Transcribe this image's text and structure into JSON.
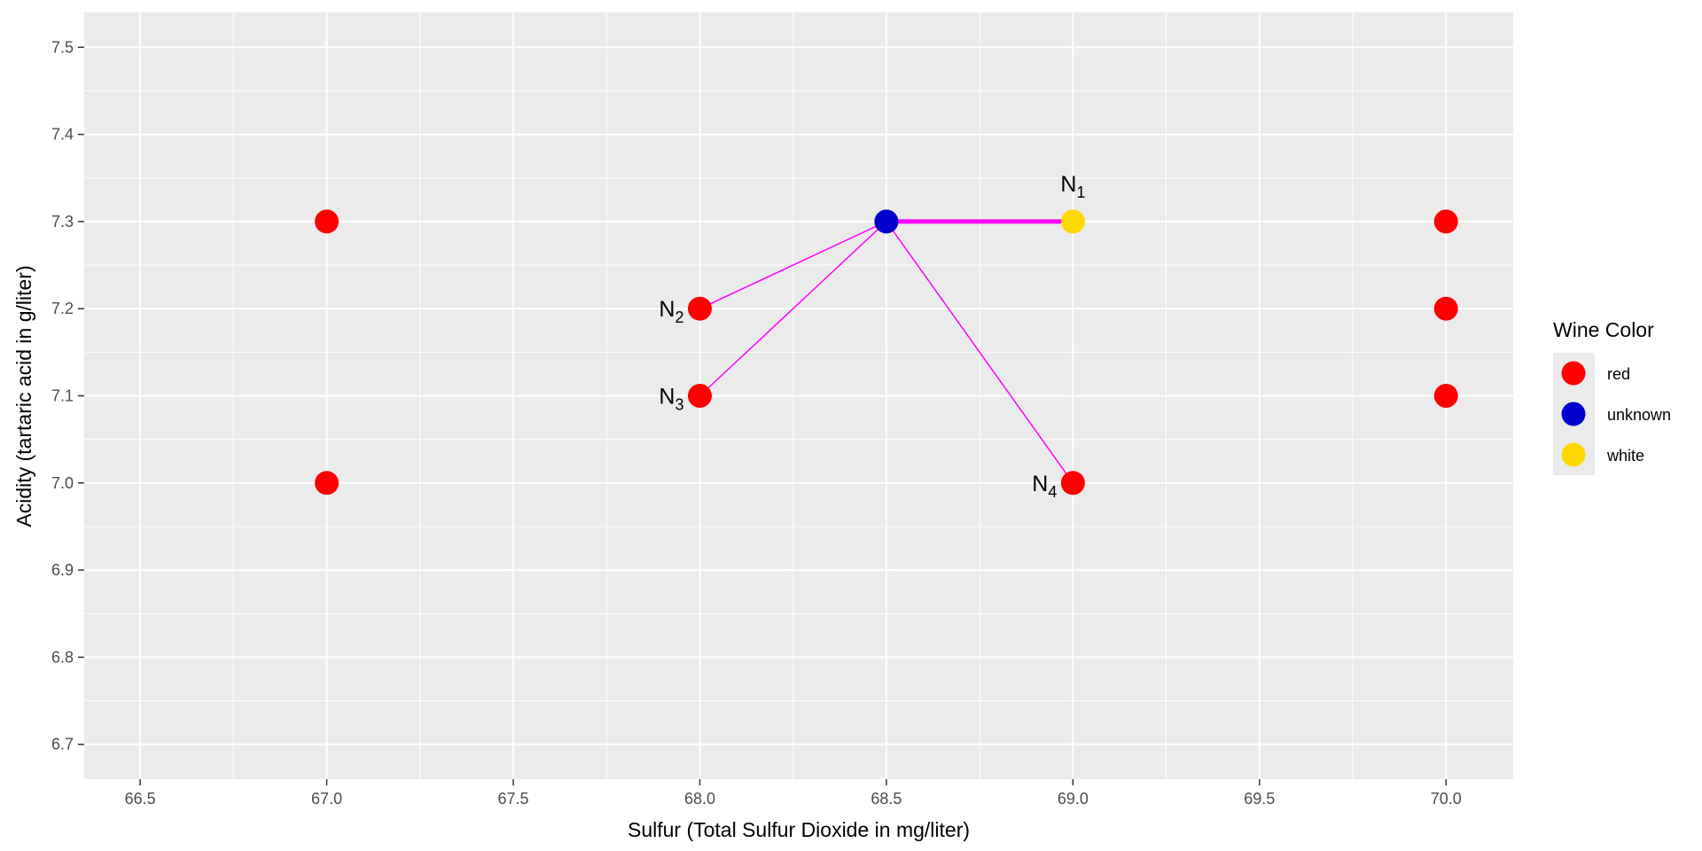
{
  "chart_data": {
    "type": "scatter",
    "xlabel": "Sulfur (Total Sulfur Dioxide  in mg/liter)",
    "ylabel": "Acidity (tartaric acid in g/liter)",
    "xlim": [
      66.35,
      70.18
    ],
    "ylim": [
      6.66,
      7.54
    ],
    "x_ticks": [
      "66.5",
      "67.0",
      "67.5",
      "68.0",
      "68.5",
      "69.0",
      "69.5",
      "70.0"
    ],
    "y_ticks": [
      "6.7",
      "6.8",
      "6.9",
      "7.0",
      "7.1",
      "7.2",
      "7.3",
      "7.4",
      "7.5"
    ],
    "grid": true,
    "legend_position": "right",
    "legend_title": "Wine Color",
    "colors": {
      "red": "#ff0000",
      "unknown": "#0000cd",
      "white": "#ffd700",
      "edge": "#ff00ff"
    },
    "legend": [
      {
        "key": "red",
        "label": "red"
      },
      {
        "key": "unknown",
        "label": "unknown"
      },
      {
        "key": "white",
        "label": "white"
      }
    ],
    "points": [
      {
        "x": 67.0,
        "y": 7.3,
        "color": "red"
      },
      {
        "x": 67.0,
        "y": 7.0,
        "color": "red"
      },
      {
        "x": 68.0,
        "y": 7.2,
        "color": "red"
      },
      {
        "x": 68.0,
        "y": 7.1,
        "color": "red"
      },
      {
        "x": 69.0,
        "y": 7.0,
        "color": "red"
      },
      {
        "x": 70.0,
        "y": 7.3,
        "color": "red"
      },
      {
        "x": 70.0,
        "y": 7.2,
        "color": "red"
      },
      {
        "x": 70.0,
        "y": 7.1,
        "color": "red"
      },
      {
        "x": 69.0,
        "y": 7.3,
        "color": "white"
      },
      {
        "x": 68.5,
        "y": 7.3,
        "color": "unknown"
      }
    ],
    "neighbor_edges": [
      {
        "from": [
          68.5,
          7.3
        ],
        "to": [
          69.0,
          7.3
        ],
        "emphasis": true
      },
      {
        "from": [
          68.5,
          7.3
        ],
        "to": [
          68.0,
          7.2
        ],
        "emphasis": false
      },
      {
        "from": [
          68.5,
          7.3
        ],
        "to": [
          68.0,
          7.1
        ],
        "emphasis": false
      },
      {
        "from": [
          68.5,
          7.3
        ],
        "to": [
          69.0,
          7.0
        ],
        "emphasis": false
      }
    ],
    "neighbor_labels": [
      {
        "text": "N",
        "sub": "1",
        "x": 69.0,
        "y": 7.3,
        "placement": "above"
      },
      {
        "text": "N",
        "sub": "2",
        "x": 68.0,
        "y": 7.2,
        "placement": "left"
      },
      {
        "text": "N",
        "sub": "3",
        "x": 68.0,
        "y": 7.1,
        "placement": "left"
      },
      {
        "text": "N",
        "sub": "4",
        "x": 69.0,
        "y": 7.0,
        "placement": "left"
      }
    ]
  }
}
